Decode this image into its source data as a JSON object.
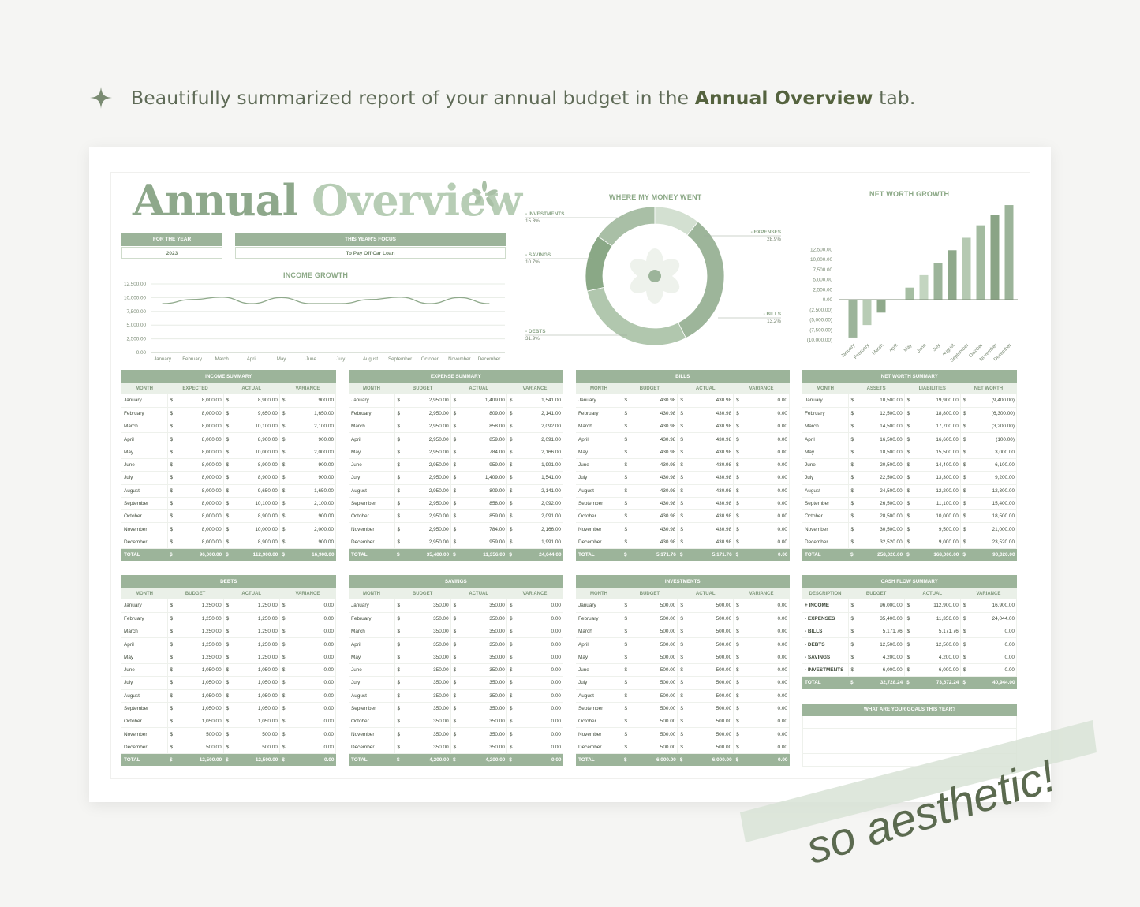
{
  "headline": {
    "prefix": "Beautifully summarized report of your annual budget in the ",
    "bold": "Annual Overview",
    "suffix": " tab."
  },
  "sheet": {
    "title_part1": "Annual",
    "title_part2": "Overview",
    "year_label": "FOR THE YEAR",
    "year_value": "2023",
    "focus_label": "THIS YEAR'S FOCUS",
    "focus_value": "To Pay Off Car Loan"
  },
  "months": [
    "January",
    "February",
    "March",
    "April",
    "May",
    "June",
    "July",
    "August",
    "September",
    "October",
    "November",
    "December"
  ],
  "income_growth": {
    "title": "INCOME GROWTH",
    "y_ticks": [
      "12,500.00",
      "10,000.00",
      "7,500.00",
      "5,000.00",
      "2,500.00",
      "0.00"
    ],
    "x_ticks": [
      "January",
      "February",
      "March",
      "April",
      "May",
      "June",
      "July",
      "August",
      "September",
      "October",
      "November",
      "December"
    ]
  },
  "donut": {
    "title": "WHERE MY MONEY WENT",
    "labels": [
      {
        "name": "- INVESTMENTS",
        "pct": "15.3%"
      },
      {
        "name": "- SAVINGS",
        "pct": "10.7%"
      },
      {
        "name": "- DEBTS",
        "pct": "31.9%"
      },
      {
        "name": "- EXPENSES",
        "pct": "28.9%"
      },
      {
        "name": "- BILLS",
        "pct": "13.2%"
      }
    ]
  },
  "net_worth_chart": {
    "title": "NET WORTH GROWTH",
    "y_ticks": [
      "12,500.00",
      "10,000.00",
      "7,500.00",
      "5,000.00",
      "2,500.00",
      "0.00",
      "(2,500.00)",
      "(5,000.00)",
      "(7,500.00)",
      "(10,000.00)"
    ],
    "x_ticks": [
      "January",
      "February",
      "March",
      "April",
      "May",
      "June",
      "July",
      "August",
      "September",
      "October",
      "November",
      "December"
    ]
  },
  "chart_data": [
    {
      "type": "line",
      "title": "INCOME GROWTH",
      "categories": [
        "January",
        "February",
        "March",
        "April",
        "May",
        "June",
        "July",
        "August",
        "September",
        "October",
        "November",
        "December"
      ],
      "values": [
        8900,
        9650,
        10100,
        8900,
        10000,
        8900,
        8900,
        9650,
        10100,
        8900,
        10000,
        8900
      ],
      "ylim": [
        0,
        12500
      ]
    },
    {
      "type": "pie",
      "title": "WHERE MY MONEY WENT",
      "categories": [
        "Investments",
        "Savings",
        "Debts",
        "Expenses",
        "Bills"
      ],
      "values": [
        15.3,
        10.7,
        31.9,
        28.9,
        13.2
      ],
      "colors": [
        "#a9bfa6",
        "#d3e0d1",
        "#9db59a",
        "#b1c7ae",
        "#8aa886"
      ]
    },
    {
      "type": "bar",
      "title": "NET WORTH GROWTH",
      "categories": [
        "January",
        "February",
        "March",
        "April",
        "May",
        "June",
        "July",
        "August",
        "September",
        "October",
        "November",
        "December"
      ],
      "values": [
        -9400,
        -6300,
        -3200,
        -100,
        3000,
        6100,
        9200,
        12300,
        15400,
        18500,
        21000,
        23520
      ],
      "ylim": [
        -10000,
        25000
      ]
    }
  ],
  "tables": {
    "income": {
      "caption": "INCOME SUMMARY",
      "headers": [
        "MONTH",
        "EXPECTED",
        "ACTUAL",
        "VARIANCE"
      ],
      "rows": [
        [
          "8,000.00",
          "8,900.00",
          "900.00"
        ],
        [
          "8,000.00",
          "9,650.00",
          "1,650.00"
        ],
        [
          "8,000.00",
          "10,100.00",
          "2,100.00"
        ],
        [
          "8,000.00",
          "8,900.00",
          "900.00"
        ],
        [
          "8,000.00",
          "10,000.00",
          "2,000.00"
        ],
        [
          "8,000.00",
          "8,900.00",
          "900.00"
        ],
        [
          "8,000.00",
          "8,900.00",
          "900.00"
        ],
        [
          "8,000.00",
          "9,650.00",
          "1,650.00"
        ],
        [
          "8,000.00",
          "10,100.00",
          "2,100.00"
        ],
        [
          "8,000.00",
          "8,900.00",
          "900.00"
        ],
        [
          "8,000.00",
          "10,000.00",
          "2,000.00"
        ],
        [
          "8,000.00",
          "8,900.00",
          "900.00"
        ]
      ],
      "total": [
        "96,000.00",
        "112,900.00",
        "16,900.00"
      ]
    },
    "expense": {
      "caption": "EXPENSE SUMMARY",
      "headers": [
        "MONTH",
        "BUDGET",
        "ACTUAL",
        "VARIANCE"
      ],
      "rows": [
        [
          "2,950.00",
          "1,409.00",
          "1,541.00"
        ],
        [
          "2,950.00",
          "809.00",
          "2,141.00"
        ],
        [
          "2,950.00",
          "858.00",
          "2,092.00"
        ],
        [
          "2,950.00",
          "859.00",
          "2,091.00"
        ],
        [
          "2,950.00",
          "784.00",
          "2,166.00"
        ],
        [
          "2,950.00",
          "959.00",
          "1,991.00"
        ],
        [
          "2,950.00",
          "1,409.00",
          "1,541.00"
        ],
        [
          "2,950.00",
          "809.00",
          "2,141.00"
        ],
        [
          "2,950.00",
          "858.00",
          "2,092.00"
        ],
        [
          "2,950.00",
          "859.00",
          "2,091.00"
        ],
        [
          "2,950.00",
          "784.00",
          "2,166.00"
        ],
        [
          "2,950.00",
          "959.00",
          "1,991.00"
        ]
      ],
      "total": [
        "35,400.00",
        "11,356.00",
        "24,044.00"
      ]
    },
    "bills": {
      "caption": "BILLS",
      "headers": [
        "MONTH",
        "BUDGET",
        "ACTUAL",
        "VARIANCE"
      ],
      "rows": [
        [
          "430.98",
          "430.98",
          "0.00"
        ],
        [
          "430.98",
          "430.98",
          "0.00"
        ],
        [
          "430.98",
          "430.98",
          "0.00"
        ],
        [
          "430.98",
          "430.98",
          "0.00"
        ],
        [
          "430.98",
          "430.98",
          "0.00"
        ],
        [
          "430.98",
          "430.98",
          "0.00"
        ],
        [
          "430.98",
          "430.98",
          "0.00"
        ],
        [
          "430.98",
          "430.98",
          "0.00"
        ],
        [
          "430.98",
          "430.98",
          "0.00"
        ],
        [
          "430.98",
          "430.98",
          "0.00"
        ],
        [
          "430.98",
          "430.98",
          "0.00"
        ],
        [
          "430.98",
          "430.98",
          "0.00"
        ]
      ],
      "total": [
        "5,171.76",
        "5,171.76",
        "0.00"
      ]
    },
    "networth": {
      "caption": "NET WORTH SUMMARY",
      "headers": [
        "MONTH",
        "ASSETS",
        "LIABILITIES",
        "NET WORTH"
      ],
      "rows": [
        [
          "10,500.00",
          "19,900.00",
          "(9,400.00)"
        ],
        [
          "12,500.00",
          "18,800.00",
          "(6,300.00)"
        ],
        [
          "14,500.00",
          "17,700.00",
          "(3,200.00)"
        ],
        [
          "16,500.00",
          "16,600.00",
          "(100.00)"
        ],
        [
          "18,500.00",
          "15,500.00",
          "3,000.00"
        ],
        [
          "20,500.00",
          "14,400.00",
          "6,100.00"
        ],
        [
          "22,500.00",
          "13,300.00",
          "9,200.00"
        ],
        [
          "24,500.00",
          "12,200.00",
          "12,300.00"
        ],
        [
          "26,500.00",
          "11,100.00",
          "15,400.00"
        ],
        [
          "28,500.00",
          "10,000.00",
          "18,500.00"
        ],
        [
          "30,500.00",
          "9,500.00",
          "21,000.00"
        ],
        [
          "32,520.00",
          "9,000.00",
          "23,520.00"
        ]
      ],
      "total": [
        "258,020.00",
        "168,000.00",
        "90,020.00"
      ]
    },
    "debts": {
      "caption": "DEBTS",
      "headers": [
        "MONTH",
        "BUDGET",
        "ACTUAL",
        "VARIANCE"
      ],
      "rows": [
        [
          "1,250.00",
          "1,250.00",
          "0.00"
        ],
        [
          "1,250.00",
          "1,250.00",
          "0.00"
        ],
        [
          "1,250.00",
          "1,250.00",
          "0.00"
        ],
        [
          "1,250.00",
          "1,250.00",
          "0.00"
        ],
        [
          "1,250.00",
          "1,250.00",
          "0.00"
        ],
        [
          "1,050.00",
          "1,050.00",
          "0.00"
        ],
        [
          "1,050.00",
          "1,050.00",
          "0.00"
        ],
        [
          "1,050.00",
          "1,050.00",
          "0.00"
        ],
        [
          "1,050.00",
          "1,050.00",
          "0.00"
        ],
        [
          "1,050.00",
          "1,050.00",
          "0.00"
        ],
        [
          "500.00",
          "500.00",
          "0.00"
        ],
        [
          "500.00",
          "500.00",
          "0.00"
        ]
      ],
      "total": [
        "12,500.00",
        "12,500.00",
        "0.00"
      ]
    },
    "savings": {
      "caption": "SAVINGS",
      "headers": [
        "MONTH",
        "BUDGET",
        "ACTUAL",
        "VARIANCE"
      ],
      "rows": [
        [
          "350.00",
          "350.00",
          "0.00"
        ],
        [
          "350.00",
          "350.00",
          "0.00"
        ],
        [
          "350.00",
          "350.00",
          "0.00"
        ],
        [
          "350.00",
          "350.00",
          "0.00"
        ],
        [
          "350.00",
          "350.00",
          "0.00"
        ],
        [
          "350.00",
          "350.00",
          "0.00"
        ],
        [
          "350.00",
          "350.00",
          "0.00"
        ],
        [
          "350.00",
          "350.00",
          "0.00"
        ],
        [
          "350.00",
          "350.00",
          "0.00"
        ],
        [
          "350.00",
          "350.00",
          "0.00"
        ],
        [
          "350.00",
          "350.00",
          "0.00"
        ],
        [
          "350.00",
          "350.00",
          "0.00"
        ]
      ],
      "total": [
        "4,200.00",
        "4,200.00",
        "0.00"
      ]
    },
    "investments": {
      "caption": "INVESTMENTS",
      "headers": [
        "MONTH",
        "BUDGET",
        "ACTUAL",
        "VARIANCE"
      ],
      "rows": [
        [
          "500.00",
          "500.00",
          "0.00"
        ],
        [
          "500.00",
          "500.00",
          "0.00"
        ],
        [
          "500.00",
          "500.00",
          "0.00"
        ],
        [
          "500.00",
          "500.00",
          "0.00"
        ],
        [
          "500.00",
          "500.00",
          "0.00"
        ],
        [
          "500.00",
          "500.00",
          "0.00"
        ],
        [
          "500.00",
          "500.00",
          "0.00"
        ],
        [
          "500.00",
          "500.00",
          "0.00"
        ],
        [
          "500.00",
          "500.00",
          "0.00"
        ],
        [
          "500.00",
          "500.00",
          "0.00"
        ],
        [
          "500.00",
          "500.00",
          "0.00"
        ],
        [
          "500.00",
          "500.00",
          "0.00"
        ]
      ],
      "total": [
        "6,000.00",
        "6,000.00",
        "0.00"
      ]
    },
    "cashflow": {
      "caption": "CASH FLOW SUMMARY",
      "headers": [
        "DESCRIPTION",
        "BUDGET",
        "ACTUAL",
        "VARIANCE"
      ],
      "rows": [
        {
          "label": "+ INCOME",
          "vals": [
            "96,000.00",
            "112,900.00",
            "16,900.00"
          ]
        },
        {
          "label": "- EXPENSES",
          "vals": [
            "35,400.00",
            "11,356.00",
            "24,044.00"
          ]
        },
        {
          "label": "- BILLS",
          "vals": [
            "5,171.76",
            "5,171.76",
            "0.00"
          ]
        },
        {
          "label": "- DEBTS",
          "vals": [
            "12,500.00",
            "12,500.00",
            "0.00"
          ]
        },
        {
          "label": "- SAVINGS",
          "vals": [
            "4,200.00",
            "4,200.00",
            "0.00"
          ]
        },
        {
          "label": "- INVESTMENTS",
          "vals": [
            "6,000.00",
            "6,000.00",
            "0.00"
          ]
        }
      ],
      "total": [
        "32,728.24",
        "73,672.24",
        "40,944.00"
      ]
    }
  },
  "total_label": "TOTAL",
  "currency": "$",
  "goals": {
    "title": "WHAT ARE YOUR GOALS THIS YEAR?"
  },
  "stamp_text": "so aesthetic!",
  "colors": {
    "accent": "#9cb49a",
    "text": "#4c5a46"
  }
}
